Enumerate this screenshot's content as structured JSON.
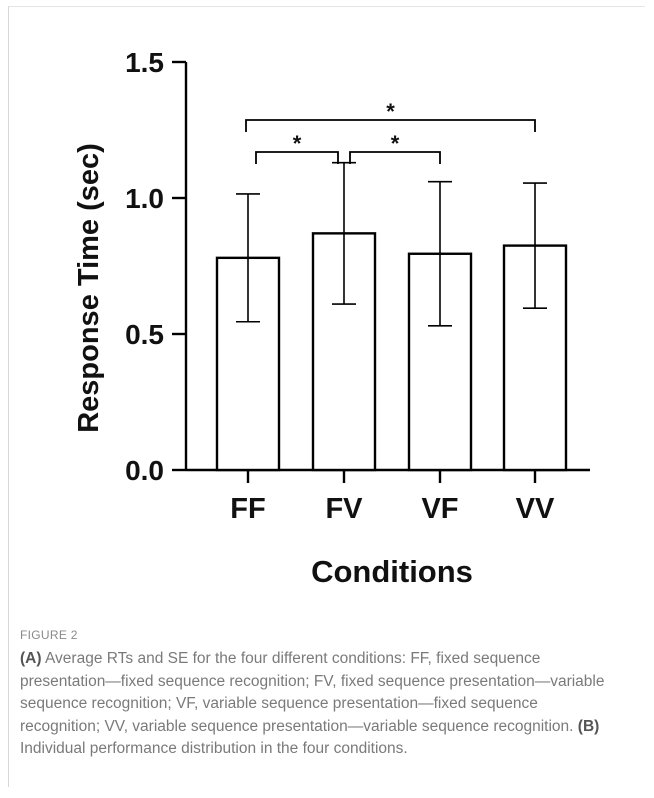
{
  "chart_data": {
    "type": "bar",
    "ylabel": "Response Time (sec)",
    "xlabel": "Conditions",
    "categories": [
      "FF",
      "FV",
      "VF",
      "VV"
    ],
    "values": [
      0.78,
      0.87,
      0.795,
      0.825
    ],
    "error": [
      0.235,
      0.26,
      0.265,
      0.23
    ],
    "ylim": [
      0.0,
      1.5
    ],
    "yticks": [
      "0.0",
      "0.5",
      "1.0",
      "1.5"
    ],
    "significance": [
      {
        "from": "FF",
        "to": "FV",
        "label": "*"
      },
      {
        "from": "FV",
        "to": "VF",
        "label": "*"
      },
      {
        "from": "FF",
        "to": "VV",
        "label": "*"
      }
    ],
    "grid": false,
    "bar_color": "#ffffff",
    "stroke_color": "#000000"
  },
  "figure": {
    "label": "FIGURE 2",
    "caption_a_label": "(A)",
    "caption_a_text": " Average RTs and SE for the four different conditions: FF, fixed sequence presentation—fixed sequence recognition; FV, fixed sequence presentation—variable sequence recognition; VF, variable sequence presentation—fixed sequence recognition; VV, variable sequence presentation—variable sequence recognition. ",
    "caption_b_label": "(B)",
    "caption_b_text": " Individual performance distribution in the four conditions."
  }
}
